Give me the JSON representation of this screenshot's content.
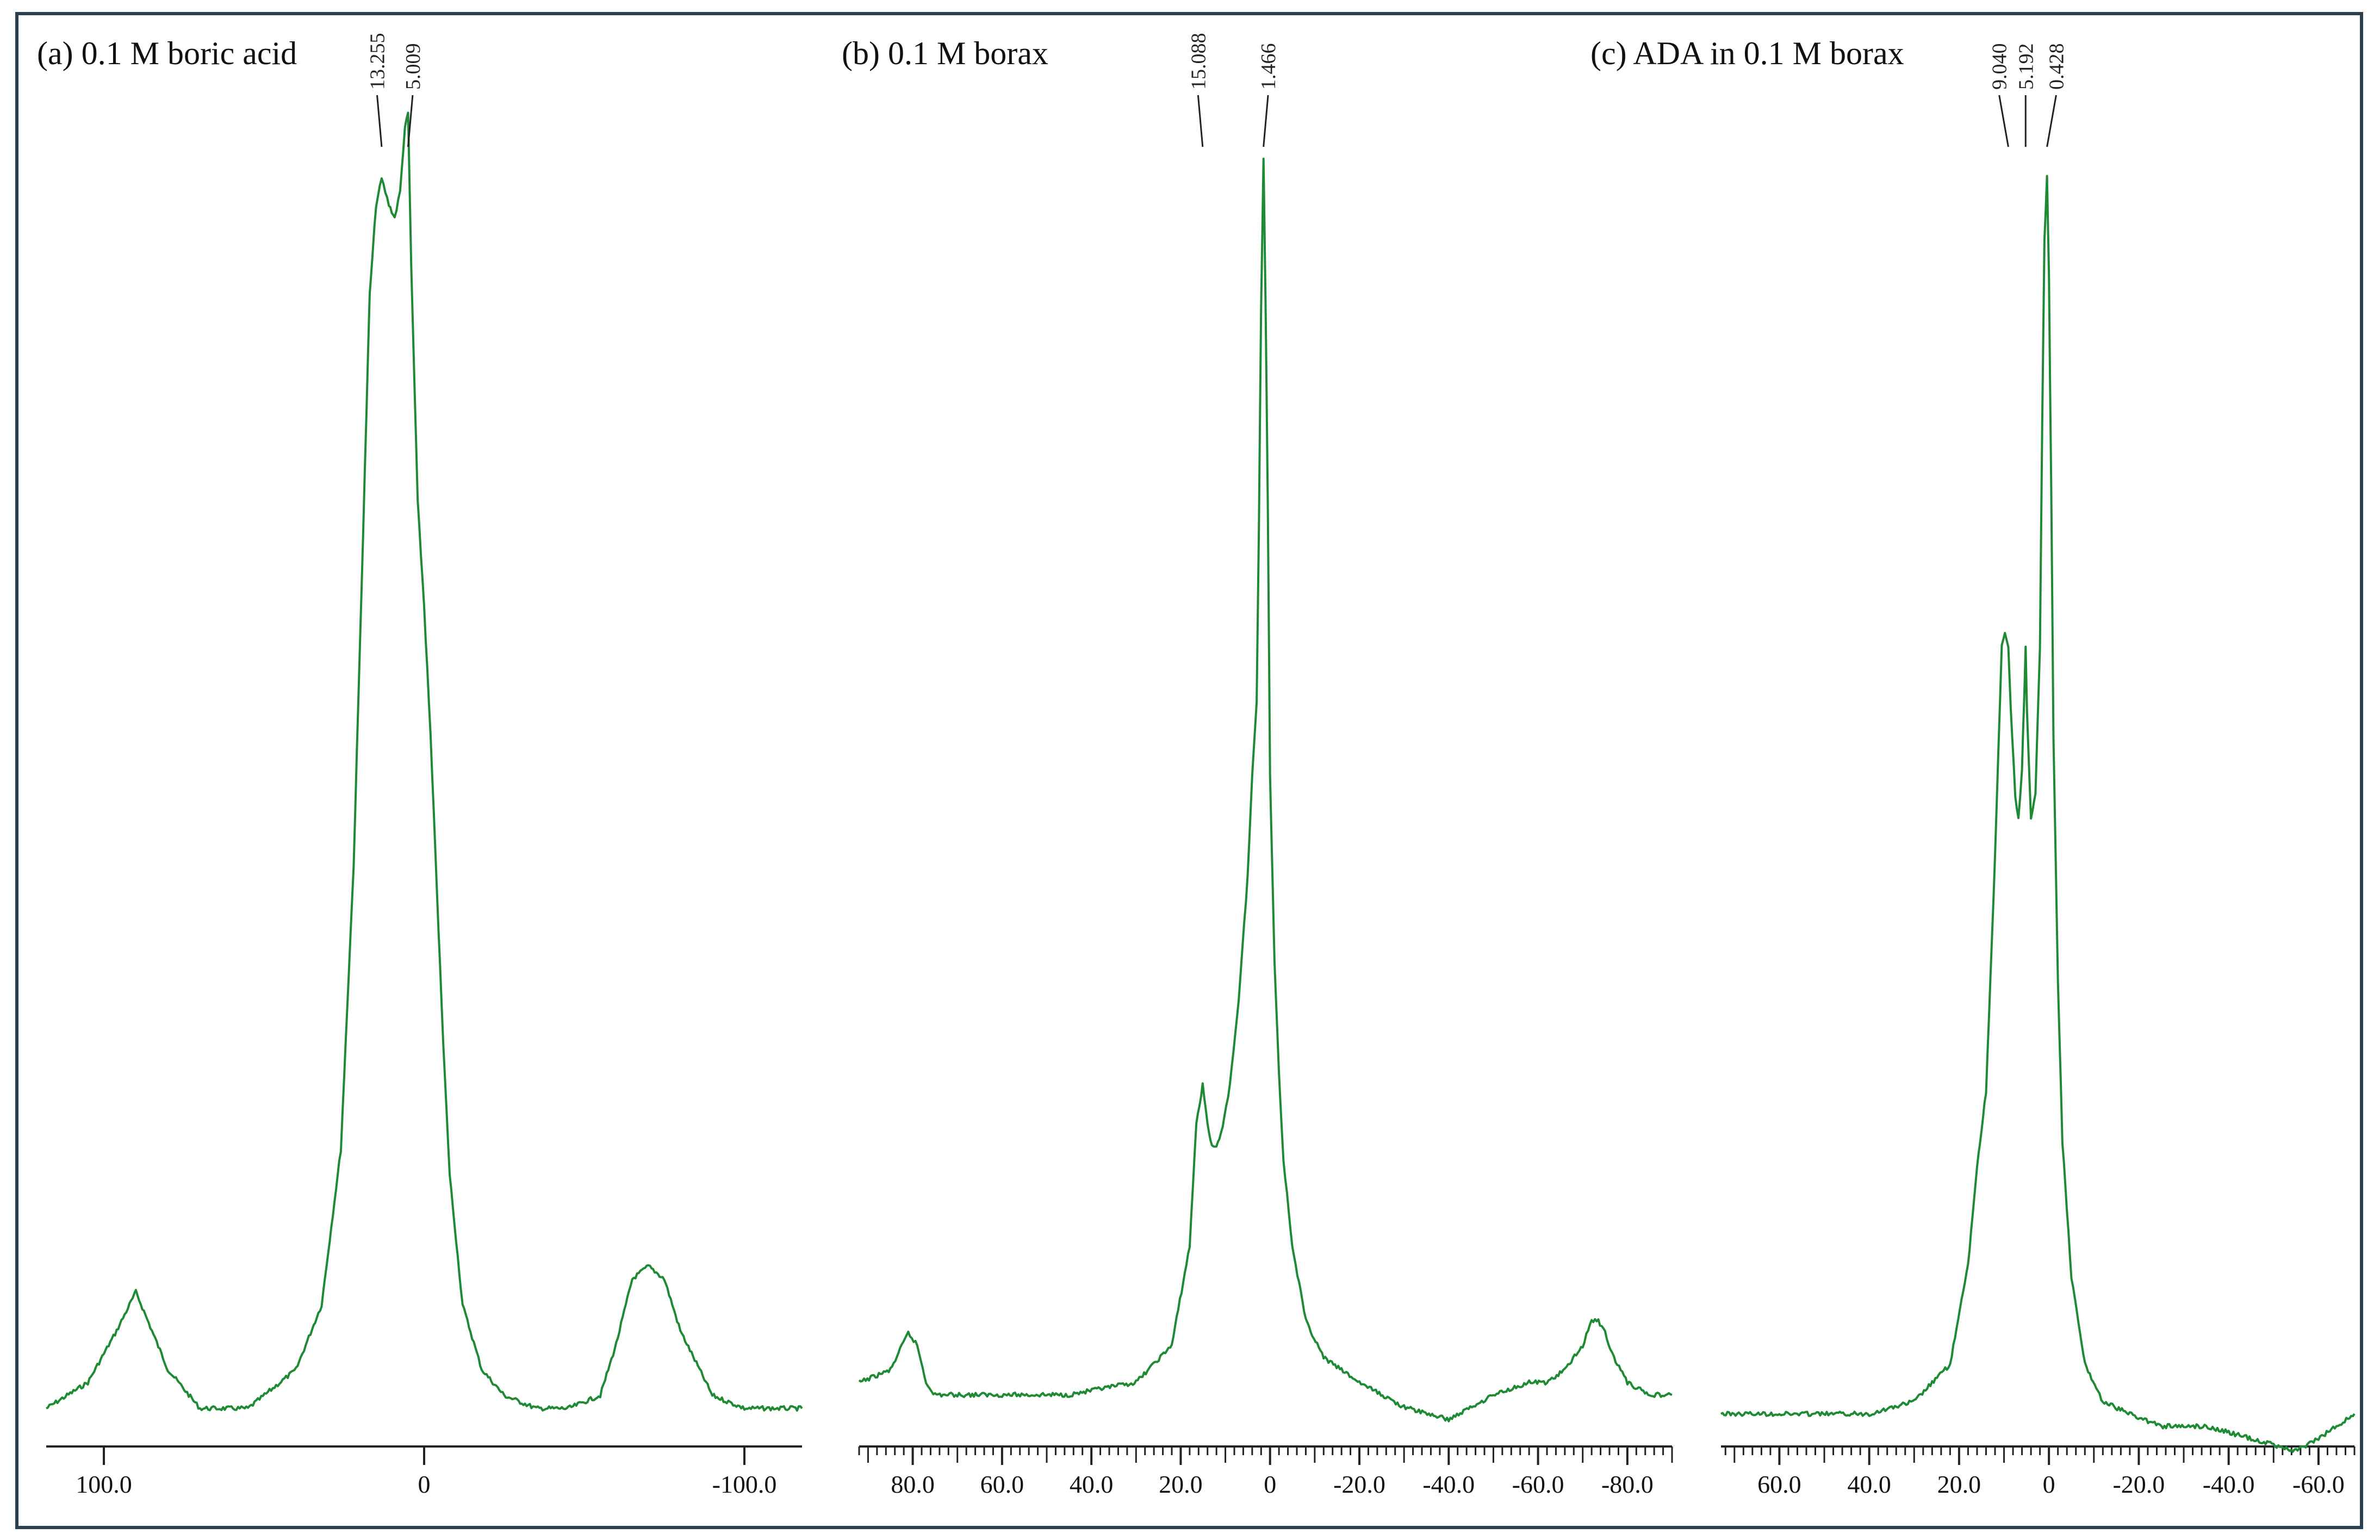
{
  "colors": {
    "trace": "#1e8a34",
    "frame": "#2b3f4e",
    "axis": "#222222"
  },
  "chart_data": [
    {
      "type": "line",
      "title": "(a) 0.1 M boric acid",
      "xlabel": "",
      "ylabel": "",
      "xlim": [
        118,
        -118
      ],
      "ticks": [
        100.0,
        0,
        -100.0
      ],
      "tick_labels": [
        "100.0",
        "0",
        "-100.0"
      ],
      "minor_ticks": false,
      "peak_labels": [
        "13.255",
        "5.009"
      ],
      "peak_positions": [
        13.255,
        5.009
      ],
      "series": [
        {
          "x": [
            118,
            105,
            96,
            90,
            85,
            80,
            70,
            55,
            40,
            32,
            26,
            22,
            19,
            17,
            15,
            13.255,
            11,
            9.2,
            7.5,
            6,
            5.009,
            4,
            2,
            0,
            -2,
            -4,
            -6,
            -8,
            -12,
            -18,
            -25,
            -35,
            -45,
            -55,
            -60,
            -65,
            -70,
            -75,
            -80,
            -90,
            -100,
            -118
          ],
          "y": [
            0.0,
            0.02,
            0.06,
            0.09,
            0.06,
            0.03,
            0.0,
            0.0,
            0.03,
            0.08,
            0.2,
            0.42,
            0.68,
            0.86,
            0.93,
            0.95,
            0.93,
            0.92,
            0.94,
            0.99,
            1.0,
            0.88,
            0.7,
            0.62,
            0.52,
            0.4,
            0.28,
            0.18,
            0.08,
            0.03,
            0.01,
            0.0,
            0.0,
            0.01,
            0.05,
            0.1,
            0.11,
            0.1,
            0.06,
            0.01,
            0.0,
            0.0
          ]
        }
      ]
    },
    {
      "type": "line",
      "title": "(b) 0.1 M borax",
      "xlabel": "",
      "ylabel": "",
      "xlim": [
        92,
        -90
      ],
      "ticks": [
        80.0,
        60.0,
        40.0,
        20.0,
        0,
        -20.0,
        -40.0,
        -60.0,
        -80.0
      ],
      "tick_labels": [
        "80.0",
        "60.0",
        "40.0",
        "20.0",
        "0",
        "-20.0",
        "-40.0",
        "-60.0",
        "-80.0"
      ],
      "minor_ticks": true,
      "peak_labels": [
        "15.088",
        "1.466"
      ],
      "peak_positions": [
        15.088,
        1.466
      ],
      "series": [
        {
          "x": [
            92,
            85,
            81,
            79,
            77,
            75,
            70,
            60,
            45,
            30,
            22,
            18,
            16.5,
            15.088,
            14,
            13,
            12,
            11,
            9,
            7,
            5,
            4,
            3,
            2.5,
            2,
            1.466,
            1,
            0.5,
            0,
            -1,
            -2,
            -3,
            -5,
            -8,
            -12,
            -20,
            -30,
            -40,
            -50,
            -58,
            -62,
            -66,
            -70,
            -72,
            -73.5,
            -75,
            -77,
            -80,
            -85,
            -90
          ],
          "y": [
            0.01,
            0.02,
            0.05,
            0.04,
            0.01,
            0.0,
            0.0,
            0.0,
            0.0,
            0.01,
            0.04,
            0.12,
            0.22,
            0.25,
            0.22,
            0.2,
            0.2,
            0.21,
            0.25,
            0.32,
            0.42,
            0.5,
            0.56,
            0.7,
            0.88,
            1.0,
            0.88,
            0.72,
            0.5,
            0.35,
            0.26,
            0.19,
            0.12,
            0.06,
            0.03,
            0.01,
            -0.01,
            -0.02,
            0.0,
            0.01,
            0.01,
            0.02,
            0.04,
            0.06,
            0.06,
            0.05,
            0.03,
            0.01,
            0.0,
            0.0
          ]
        }
      ]
    },
    {
      "type": "line",
      "title": "(c) ADA in 0.1 M borax",
      "xlabel": "",
      "ylabel": "",
      "xlim": [
        73,
        -68
      ],
      "ticks": [
        60.0,
        40.0,
        20.0,
        0,
        -20.0,
        -40.0,
        -60.0
      ],
      "tick_labels": [
        "60.0",
        "40.0",
        "20.0",
        "0",
        "-20.0",
        "-40.0",
        "-60.0"
      ],
      "minor_ticks": true,
      "peak_labels": [
        "9.040",
        "5.192",
        "0.428"
      ],
      "peak_positions": [
        9.04,
        5.192,
        0.428
      ],
      "series": [
        {
          "x": [
            73,
            60,
            40,
            30,
            22,
            18,
            16,
            15,
            14,
            12,
            10.5,
            9.8,
            9.04,
            8.5,
            7.5,
            6.8,
            6,
            5.5,
            5.192,
            4.9,
            4,
            3,
            2,
            1.5,
            1,
            0.428,
            0,
            -0.5,
            -1,
            -2,
            -3,
            -5,
            -8,
            -12,
            -18,
            -25,
            -35,
            -45,
            -55,
            -60,
            -68
          ],
          "y": [
            0.0,
            0.0,
            0.0,
            0.01,
            0.04,
            0.12,
            0.2,
            0.23,
            0.26,
            0.45,
            0.62,
            0.63,
            0.62,
            0.57,
            0.5,
            0.48,
            0.52,
            0.58,
            0.62,
            0.57,
            0.48,
            0.5,
            0.62,
            0.8,
            0.95,
            1.0,
            0.92,
            0.75,
            0.55,
            0.35,
            0.22,
            0.11,
            0.04,
            0.01,
            0.0,
            -0.01,
            -0.01,
            -0.02,
            -0.03,
            -0.02,
            0.0
          ]
        }
      ]
    }
  ]
}
